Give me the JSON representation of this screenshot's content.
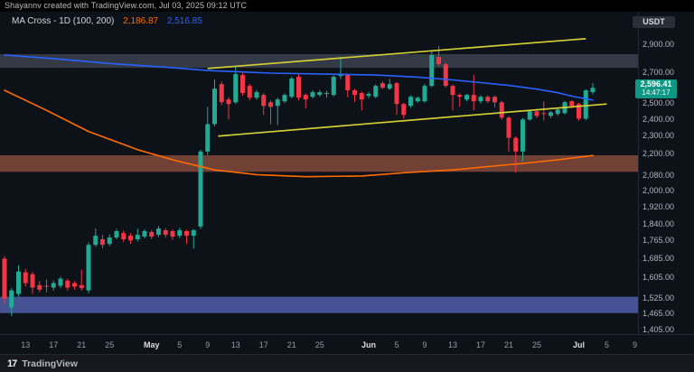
{
  "attribution": {
    "text": "Shayannv created with TradingView.com, Jul 03, 2025 09:12 UTC"
  },
  "legend": {
    "title": "MA Cross - 1D (100, 200)",
    "ma_fast_value": "2,186.87",
    "ma_slow_value": "2,516.85"
  },
  "currency_button": {
    "label": "USDT"
  },
  "footer": {
    "brand": "TradingView",
    "logo_glyph": "17"
  },
  "price_scale": {
    "current": {
      "price_label": "2,596.41",
      "countdown": "14:47:17"
    },
    "labels": [
      {
        "price": 2900,
        "text": "2,900.00"
      },
      {
        "price": 2700,
        "text": "2,700.00"
      },
      {
        "price": 2500,
        "text": "2,500.00"
      },
      {
        "price": 2400,
        "text": "2,400.00"
      },
      {
        "price": 2300,
        "text": "2,300.00"
      },
      {
        "price": 2200,
        "text": "2,200.00"
      },
      {
        "price": 2080,
        "text": "2,080.00"
      },
      {
        "price": 2000,
        "text": "2,000.00"
      },
      {
        "price": 1920,
        "text": "1,920.00"
      },
      {
        "price": 1840,
        "text": "1,840.00"
      },
      {
        "price": 1765,
        "text": "1,765.00"
      },
      {
        "price": 1685,
        "text": "1,685.00"
      },
      {
        "price": 1605,
        "text": "1,605.00"
      },
      {
        "price": 1525,
        "text": "1,525.00"
      },
      {
        "price": 1465,
        "text": "1,465.00"
      },
      {
        "price": 1405,
        "text": "1,405.00"
      }
    ]
  },
  "time_scale": {
    "ticks": [
      {
        "label": "13",
        "i": 3,
        "major": false
      },
      {
        "label": "17",
        "i": 7,
        "major": false
      },
      {
        "label": "21",
        "i": 11,
        "major": false
      },
      {
        "label": "25",
        "i": 15,
        "major": false
      },
      {
        "label": "May",
        "i": 21,
        "major": true
      },
      {
        "label": "5",
        "i": 25,
        "major": false
      },
      {
        "label": "9",
        "i": 29,
        "major": false
      },
      {
        "label": "13",
        "i": 33,
        "major": false
      },
      {
        "label": "17",
        "i": 37,
        "major": false
      },
      {
        "label": "21",
        "i": 41,
        "major": false
      },
      {
        "label": "25",
        "i": 45,
        "major": false
      },
      {
        "label": "Jun",
        "i": 52,
        "major": true
      },
      {
        "label": "5",
        "i": 56,
        "major": false
      },
      {
        "label": "9",
        "i": 60,
        "major": false
      },
      {
        "label": "13",
        "i": 64,
        "major": false
      },
      {
        "label": "17",
        "i": 68,
        "major": false
      },
      {
        "label": "21",
        "i": 72,
        "major": false
      },
      {
        "label": "25",
        "i": 76,
        "major": false
      },
      {
        "label": "Jul",
        "i": 82,
        "major": true
      },
      {
        "label": "5",
        "i": 86,
        "major": false
      },
      {
        "label": "9",
        "i": 90,
        "major": false
      }
    ]
  },
  "colors": {
    "up": "#22ab94",
    "down": "#f23645",
    "ma_fast": "#ff6d00",
    "ma_slow": "#2962ff",
    "trendline": "#d1cf34",
    "badge_bg": "#0d9884",
    "zone_gray": "rgba(140,156,178,0.30)",
    "zone_brown": "rgba(198,106,80,0.55)",
    "zone_blue": "rgba(105,122,224,0.62)"
  },
  "chart_data": {
    "type": "candlestick",
    "title": "MA Cross - 1D (100, 200)",
    "interval": "1D",
    "quote_currency": "USDT",
    "scale": "log",
    "ylim": [
      1390,
      3142
    ],
    "current_price": 2596.41,
    "candles_ohlc": [
      [
        1683,
        1695,
        1500,
        1521
      ],
      [
        1487,
        1562,
        1455,
        1553
      ],
      [
        1539,
        1656,
        1528,
        1629
      ],
      [
        1626,
        1640,
        1568,
        1582
      ],
      [
        1618,
        1628,
        1539,
        1564
      ],
      [
        1574,
        1590,
        1545,
        1556
      ],
      [
        1571,
        1597,
        1546,
        1568
      ],
      [
        1564,
        1592,
        1552,
        1582
      ],
      [
        1571,
        1608,
        1562,
        1600
      ],
      [
        1592,
        1600,
        1553,
        1564
      ],
      [
        1582,
        1590,
        1556,
        1568
      ],
      [
        1574,
        1637,
        1552,
        1562
      ],
      [
        1553,
        1753,
        1542,
        1743
      ],
      [
        1743,
        1817,
        1735,
        1784
      ],
      [
        1768,
        1788,
        1728,
        1743
      ],
      [
        1747,
        1790,
        1738,
        1776
      ],
      [
        1776,
        1815,
        1768,
        1805
      ],
      [
        1796,
        1808,
        1755,
        1768
      ],
      [
        1784,
        1795,
        1748,
        1763
      ],
      [
        1768,
        1817,
        1758,
        1788
      ],
      [
        1780,
        1813,
        1772,
        1805
      ],
      [
        1801,
        1810,
        1768,
        1780
      ],
      [
        1788,
        1828,
        1778,
        1817
      ],
      [
        1809,
        1818,
        1775,
        1788
      ],
      [
        1805,
        1812,
        1766,
        1780
      ],
      [
        1784,
        1820,
        1774,
        1809
      ],
      [
        1805,
        1812,
        1747,
        1784
      ],
      [
        1784,
        1815,
        1727,
        1809
      ],
      [
        1826,
        2219,
        1815,
        2209
      ],
      [
        2209,
        2474,
        2190,
        2368
      ],
      [
        2368,
        2651,
        2355,
        2591
      ],
      [
        2621,
        2640,
        2485,
        2503
      ],
      [
        2521,
        2535,
        2396,
        2492
      ],
      [
        2503,
        2745,
        2492,
        2688
      ],
      [
        2682,
        2700,
        2545,
        2562
      ],
      [
        2609,
        2622,
        2515,
        2532
      ],
      [
        2532,
        2582,
        2520,
        2568
      ],
      [
        2550,
        2562,
        2424,
        2480
      ],
      [
        2503,
        2515,
        2368,
        2474
      ],
      [
        2480,
        2532,
        2362,
        2521
      ],
      [
        2509,
        2560,
        2498,
        2550
      ],
      [
        2538,
        2670,
        2528,
        2658
      ],
      [
        2670,
        2688,
        2515,
        2532
      ],
      [
        2550,
        2560,
        2463,
        2521
      ],
      [
        2538,
        2580,
        2528,
        2568
      ],
      [
        2550,
        2582,
        2538,
        2568
      ],
      [
        2556,
        2578,
        2532,
        2562
      ],
      [
        2550,
        2680,
        2540,
        2670
      ],
      [
        2675,
        2808,
        2655,
        2690
      ],
      [
        2682,
        2692,
        2535,
        2580
      ],
      [
        2580,
        2590,
        2505,
        2550
      ],
      [
        2562,
        2572,
        2452,
        2521
      ],
      [
        2544,
        2570,
        2528,
        2556
      ],
      [
        2538,
        2620,
        2528,
        2609
      ],
      [
        2627,
        2640,
        2588,
        2597
      ],
      [
        2591,
        2655,
        2582,
        2621
      ],
      [
        2627,
        2635,
        2424,
        2492
      ],
      [
        2492,
        2500,
        2400,
        2424
      ],
      [
        2480,
        2548,
        2468,
        2538
      ],
      [
        2509,
        2540,
        2500,
        2532
      ],
      [
        2509,
        2622,
        2500,
        2609
      ],
      [
        2609,
        2855,
        2600,
        2821
      ],
      [
        2808,
        2887,
        2745,
        2757
      ],
      [
        2757,
        2767,
        2598,
        2609
      ],
      [
        2609,
        2618,
        2452,
        2550
      ],
      [
        2550,
        2560,
        2474,
        2538
      ],
      [
        2521,
        2556,
        2508,
        2550
      ],
      [
        2550,
        2682,
        2452,
        2509
      ],
      [
        2509,
        2548,
        2495,
        2538
      ],
      [
        2538,
        2546,
        2498,
        2509
      ],
      [
        2538,
        2546,
        2470,
        2503
      ],
      [
        2503,
        2512,
        2395,
        2407
      ],
      [
        2407,
        2415,
        2209,
        2287
      ],
      [
        2287,
        2295,
        2093,
        2209
      ],
      [
        2209,
        2405,
        2155,
        2396
      ],
      [
        2396,
        2455,
        2388,
        2446
      ],
      [
        2446,
        2455,
        2403,
        2418
      ],
      [
        2435,
        2509,
        2390,
        2430
      ],
      [
        2418,
        2448,
        2405,
        2440
      ],
      [
        2430,
        2465,
        2418,
        2457
      ],
      [
        2435,
        2512,
        2426,
        2503
      ],
      [
        2509,
        2516,
        2466,
        2480
      ],
      [
        2492,
        2500,
        2388,
        2401
      ],
      [
        2401,
        2588,
        2392,
        2580
      ],
      [
        2568,
        2628,
        2552,
        2596.41
      ]
    ],
    "overlays": {
      "ma_fast": {
        "name": "MA 100",
        "last_value": 2186.87,
        "points": [
          [
            0,
            2580
          ],
          [
            6,
            2452
          ],
          [
            12,
            2324
          ],
          [
            19,
            2219
          ],
          [
            24.5,
            2158
          ],
          [
            30,
            2108
          ],
          [
            36,
            2083
          ],
          [
            43,
            2072
          ],
          [
            51,
            2076
          ],
          [
            57,
            2093
          ],
          [
            64,
            2108
          ],
          [
            69,
            2126
          ],
          [
            74,
            2143
          ],
          [
            79,
            2163
          ],
          [
            84,
            2186.87
          ]
        ]
      },
      "ma_slow": {
        "name": "MA 200",
        "last_value": 2516.85,
        "points": [
          [
            0,
            2821
          ],
          [
            7,
            2796
          ],
          [
            15,
            2762
          ],
          [
            23,
            2736
          ],
          [
            29,
            2713
          ],
          [
            38,
            2695
          ],
          [
            46,
            2688
          ],
          [
            53,
            2682
          ],
          [
            59,
            2668
          ],
          [
            64,
            2649
          ],
          [
            68,
            2631
          ],
          [
            72,
            2612
          ],
          [
            76,
            2588
          ],
          [
            79,
            2564
          ],
          [
            81,
            2542
          ],
          [
            84,
            2516.85
          ]
        ]
      },
      "trendlines": [
        {
          "from": [
            29,
            2727
          ],
          "to": [
            83,
            2941
          ]
        },
        {
          "from": [
            30.5,
            2297
          ],
          "to": [
            86,
            2492
          ]
        }
      ],
      "zones": [
        {
          "top": 2828,
          "bottom": 2731,
          "role": "resistance-gray"
        },
        {
          "top": 2188,
          "bottom": 2098,
          "role": "support-brown"
        },
        {
          "top": 1528,
          "bottom": 1466,
          "role": "support-blue"
        }
      ]
    }
  }
}
